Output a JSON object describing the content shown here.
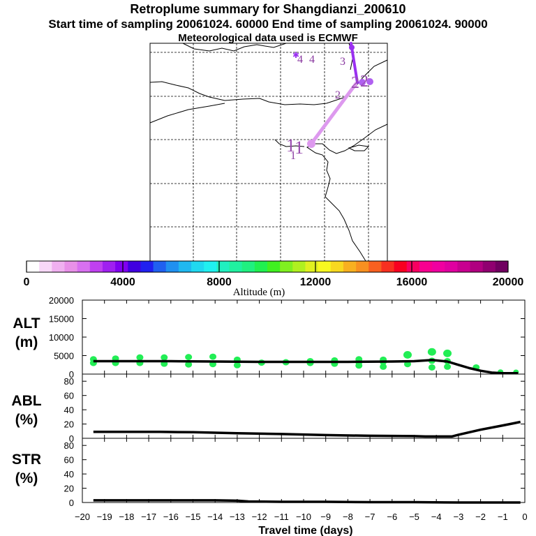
{
  "header": {
    "title": "Retroplume summary for Shangdianzi_200610",
    "sampling": "Start time of sampling 20061024. 60000     End time of sampling 20061024. 90000",
    "met": "Meteorological data used is ECMWF"
  },
  "map": {
    "labels": [
      {
        "text": "1",
        "size": "large"
      },
      {
        "text": "1",
        "size": "large"
      },
      {
        "text": "1",
        "size": "small"
      },
      {
        "text": "2",
        "size": "large"
      },
      {
        "text": "2",
        "size": "large"
      },
      {
        "text": "2",
        "size": "small"
      },
      {
        "text": "3",
        "size": "small"
      },
      {
        "text": "4",
        "size": "small"
      },
      {
        "text": "4",
        "size": "small"
      }
    ]
  },
  "colorbar": {
    "ticks": [
      "0",
      "4000",
      "8000",
      "12000",
      "16000",
      "20000"
    ],
    "label": "Altitude (m)",
    "colors": [
      "#ffffff",
      "#f8d8f8",
      "#f0b0f0",
      "#e890e8",
      "#d870f0",
      "#c040f0",
      "#a020f0",
      "#8000f0",
      "#4000e0",
      "#2020f0",
      "#2060f0",
      "#2090f0",
      "#20b8f0",
      "#20d8f0",
      "#20f0f0",
      "#20f0c0",
      "#20f0a0",
      "#20f080",
      "#20f050",
      "#40f020",
      "#80f020",
      "#b0f020",
      "#e0f020",
      "#f8f820",
      "#f8d820",
      "#f8b020",
      "#f89020",
      "#f86020",
      "#f83020",
      "#f80020",
      "#f80060",
      "#f80090",
      "#f000a0",
      "#e000a0",
      "#c80090",
      "#b00080",
      "#900070",
      "#700060"
    ]
  },
  "chart_data": [
    {
      "type": "line",
      "id": "alt",
      "ylabel": "ALT (m)",
      "ylabel_lines": [
        "ALT",
        "(m)"
      ],
      "ylim": [
        0,
        20000
      ],
      "yticks": [
        "20000",
        "15000",
        "10000",
        "5000",
        "0"
      ],
      "ytick_values": [
        20000,
        15000,
        10000,
        5000,
        0
      ],
      "x": [
        -19.5,
        -18,
        -16,
        -14,
        -12,
        -10,
        -8,
        -6,
        -5,
        -4.2,
        -3.5,
        -3,
        -2.5,
        -2,
        -1.5,
        -1,
        -0.5,
        -0.3
      ],
      "y": [
        3500,
        3500,
        3500,
        3400,
        3300,
        3300,
        3300,
        3400,
        3500,
        3800,
        3400,
        2500,
        1600,
        900,
        400,
        250,
        250,
        250
      ],
      "scatter": {
        "color": "#22ee55",
        "x": [
          -19.5,
          -19.5,
          -18.5,
          -18.5,
          -17.4,
          -17.4,
          -16.3,
          -16.3,
          -15.2,
          -15.2,
          -14.1,
          -14.1,
          -13,
          -13,
          -11.9,
          -10.8,
          -9.7,
          -9.7,
          -8.6,
          -8.6,
          -7.5,
          -7.5,
          -7.5,
          -6.4,
          -6.4,
          -6.4,
          -5.3,
          -5.3,
          -4.2,
          -4.2,
          -4.2,
          -3.5,
          -3.5,
          -3.5,
          -2.2,
          -1.1,
          -0.4
        ],
        "y": [
          3000,
          4000,
          3000,
          4200,
          3000,
          4500,
          2800,
          4500,
          2600,
          4600,
          2700,
          4700,
          2400,
          3900,
          3100,
          3200,
          3000,
          3500,
          2800,
          3700,
          2300,
          3200,
          4000,
          2000,
          3300,
          3900,
          2700,
          5200,
          1800,
          3600,
          6000,
          2000,
          3500,
          5600,
          1800,
          600,
          550
        ]
      }
    },
    {
      "type": "line",
      "id": "abl",
      "ylabel": "ABL (%)",
      "ylabel_lines": [
        "ABL",
        "(%)"
      ],
      "ylim": [
        0,
        90
      ],
      "yticks": [
        "80",
        "60",
        "40",
        "20",
        "0"
      ],
      "ytick_values": [
        80,
        60,
        40,
        20,
        0
      ],
      "x": [
        -19.5,
        -18,
        -16.5,
        -15,
        -13,
        -11,
        -9,
        -7,
        -5,
        -4.5,
        -3.3,
        -3,
        -2,
        -1,
        -0.5,
        -0.2
      ],
      "y": [
        9,
        9,
        9,
        8.5,
        7,
        6,
        4.5,
        3.5,
        3,
        2.5,
        2.5,
        5,
        12,
        18,
        21,
        23
      ]
    },
    {
      "type": "line",
      "id": "str",
      "ylabel": "STR (%)",
      "ylabel_lines": [
        "STR",
        "(%)"
      ],
      "ylim": [
        0,
        90
      ],
      "yticks": [
        "80",
        "60",
        "40",
        "20",
        "0"
      ],
      "ytick_values": [
        80,
        60,
        40,
        20,
        0
      ],
      "x": [
        -19.5,
        -18,
        -16,
        -14,
        -13,
        -12.5,
        -11,
        -9,
        -7,
        -5,
        -3,
        -2,
        -0.2
      ],
      "y": [
        3,
        3,
        3,
        3,
        2.5,
        1.5,
        1,
        1,
        0.5,
        0.5,
        0,
        0,
        0
      ]
    }
  ],
  "xaxis": {
    "label": "Travel time (days)",
    "xlim": [
      -20,
      0
    ],
    "tick_values": [
      -20,
      -19,
      -18,
      -17,
      -16,
      -15,
      -14,
      -13,
      -12,
      -11,
      -10,
      -9,
      -8,
      -7,
      -6,
      -5,
      -4,
      -3,
      -2,
      -1,
      0
    ],
    "tick_labels": [
      "−20",
      "−19",
      "−18",
      "−17",
      "−16",
      "−15",
      "−14",
      "−13",
      "−12",
      "−11",
      "−10",
      "−9",
      "−8",
      "−7",
      "−6",
      "−5",
      "−4",
      "−3",
      "−2",
      "−1",
      "0"
    ]
  }
}
